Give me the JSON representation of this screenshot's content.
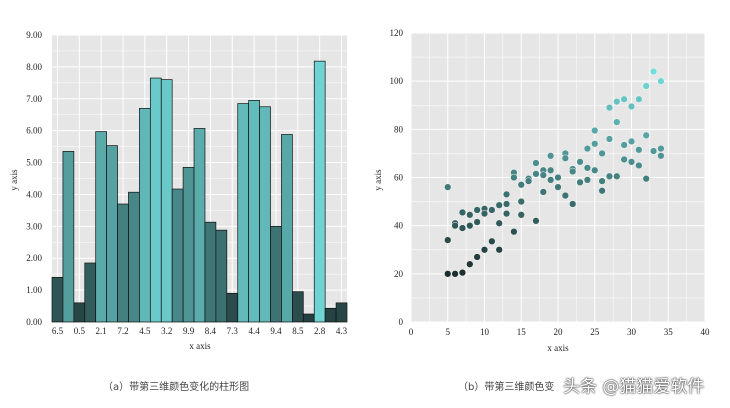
{
  "chart_data": [
    {
      "type": "bar",
      "xlabel": "x axis",
      "ylabel": "y axis",
      "ylim": [
        0,
        9
      ],
      "yticks": [
        "0.00",
        "1.00",
        "2.00",
        "3.00",
        "4.00",
        "5.00",
        "6.00",
        "7.00",
        "8.00",
        "9.00"
      ],
      "xtick_labels": [
        "6.5",
        "0.5",
        "2.1",
        "7.2",
        "4.5",
        "3.2",
        "9.9",
        "8.4",
        "7.3",
        "4.4",
        "9.4",
        "8.5",
        "2.8",
        "4.3"
      ],
      "values": [
        1.4,
        5.35,
        0.6,
        1.85,
        5.97,
        5.53,
        3.7,
        4.07,
        6.7,
        7.65,
        7.6,
        4.17,
        4.85,
        6.07,
        3.13,
        2.88,
        0.9,
        6.85,
        6.95,
        6.75,
        3.0,
        5.88,
        0.95,
        0.25,
        8.18,
        0.43,
        0.6
      ],
      "color_scale": [
        "#223b3b",
        "#6fd3d3"
      ],
      "grid": true,
      "caption": "（a）带第三维颜色变化的柱形图"
    },
    {
      "type": "scatter",
      "xlabel": "x axis",
      "ylabel": "y axis",
      "xlim": [
        0,
        40
      ],
      "ylim": [
        0,
        120
      ],
      "xticks": [
        "0",
        "5",
        "10",
        "15",
        "20",
        "25",
        "30",
        "35",
        "40"
      ],
      "yticks": [
        "0",
        "20",
        "40",
        "60",
        "80",
        "100",
        "120"
      ],
      "points": [
        [
          5,
          56
        ],
        [
          5,
          34
        ],
        [
          5,
          20
        ],
        [
          6,
          20
        ],
        [
          7,
          20.5
        ],
        [
          6,
          41
        ],
        [
          6,
          40
        ],
        [
          7,
          45.5
        ],
        [
          7,
          39
        ],
        [
          8,
          44.5
        ],
        [
          8,
          40
        ],
        [
          8,
          24
        ],
        [
          9,
          46.5
        ],
        [
          9,
          41.5
        ],
        [
          9,
          27
        ],
        [
          10,
          47
        ],
        [
          10,
          45
        ],
        [
          10,
          30
        ],
        [
          11,
          46.5
        ],
        [
          11,
          33.5
        ],
        [
          12,
          48.5
        ],
        [
          12,
          41
        ],
        [
          12,
          30
        ],
        [
          13,
          53
        ],
        [
          13,
          49
        ],
        [
          13,
          45
        ],
        [
          14,
          62
        ],
        [
          14,
          60
        ],
        [
          14,
          37.5
        ],
        [
          15,
          57
        ],
        [
          15,
          50
        ],
        [
          15,
          44.5
        ],
        [
          16,
          59.5
        ],
        [
          16,
          58.5
        ],
        [
          17,
          66
        ],
        [
          17,
          61.5
        ],
        [
          17,
          42
        ],
        [
          18,
          63
        ],
        [
          18,
          61
        ],
        [
          18,
          54
        ],
        [
          19,
          69
        ],
        [
          19,
          63
        ],
        [
          19,
          59
        ],
        [
          20,
          60
        ],
        [
          20,
          56
        ],
        [
          21,
          70
        ],
        [
          21,
          68
        ],
        [
          21,
          52.5
        ],
        [
          22,
          63.5
        ],
        [
          22,
          62.5
        ],
        [
          22,
          49
        ],
        [
          23,
          66.5
        ],
        [
          23,
          58
        ],
        [
          24,
          72
        ],
        [
          24,
          64
        ],
        [
          24,
          59
        ],
        [
          25,
          79.5
        ],
        [
          25,
          74
        ],
        [
          25,
          63
        ],
        [
          26,
          70
        ],
        [
          26,
          58.5
        ],
        [
          26,
          54.5
        ],
        [
          27,
          89
        ],
        [
          27,
          76
        ],
        [
          27,
          60.5
        ],
        [
          28,
          91.5
        ],
        [
          28,
          83
        ],
        [
          28,
          60.5
        ],
        [
          29,
          92.5
        ],
        [
          29,
          73.5
        ],
        [
          29,
          67.5
        ],
        [
          30,
          89.5
        ],
        [
          30,
          75
        ],
        [
          30,
          66.5
        ],
        [
          31,
          92.5
        ],
        [
          31,
          71.5
        ],
        [
          31,
          65
        ],
        [
          32,
          98
        ],
        [
          32,
          77.5
        ],
        [
          32,
          59.5
        ],
        [
          33,
          104
        ],
        [
          33,
          71
        ],
        [
          34,
          100
        ],
        [
          34,
          72
        ],
        [
          34,
          69
        ]
      ],
      "color_scale": [
        "#1c2e2e",
        "#74dede"
      ],
      "grid": true,
      "caption": "（b）带第三维颜色变"
    }
  ],
  "watermark": "头条 @猫猫爱软件"
}
